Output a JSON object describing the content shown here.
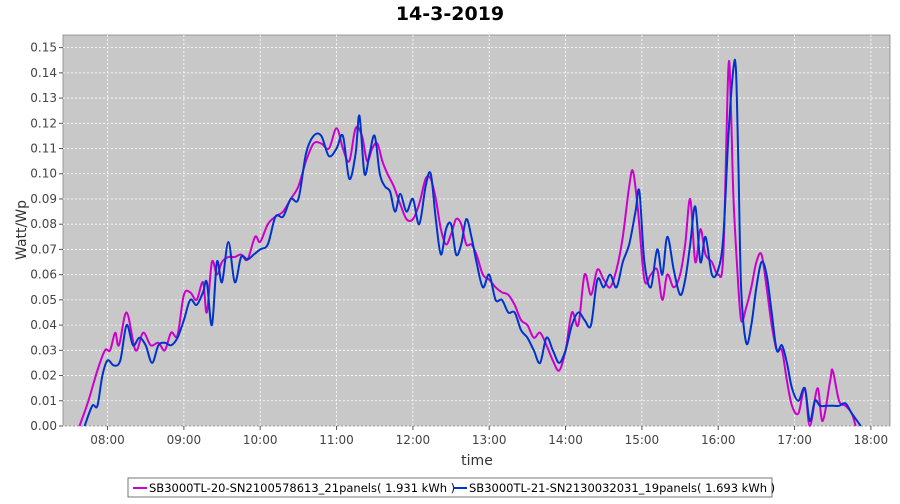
{
  "chart_data": {
    "type": "line",
    "title": "14-3-2019",
    "xlabel": "time",
    "ylabel": "Watt/Wp",
    "xlim": [
      "07:25",
      "18:15"
    ],
    "ylim": [
      0,
      0.155
    ],
    "grid": true,
    "legend_position": "bottom",
    "plot_background": "#c8c8c8",
    "x_ticks": [
      "08:00",
      "09:00",
      "10:00",
      "11:00",
      "12:00",
      "13:00",
      "14:00",
      "15:00",
      "16:00",
      "17:00",
      "18:00"
    ],
    "y_ticks": [
      0.0,
      0.01,
      0.02,
      0.03,
      0.04,
      0.05,
      0.06,
      0.07,
      0.08,
      0.09,
      0.1,
      0.11,
      0.12,
      0.13,
      0.14,
      0.15
    ],
    "series": [
      {
        "name": "SB3000TL-20-SN2100578613_21panels( 1.931 kWh )",
        "color": "#cc00cc",
        "points": [
          [
            "07:38",
            0.0
          ],
          [
            "07:45",
            0.01
          ],
          [
            "07:52",
            0.022
          ],
          [
            "07:58",
            0.03
          ],
          [
            "08:02",
            0.03
          ],
          [
            "08:06",
            0.037
          ],
          [
            "08:09",
            0.032
          ],
          [
            "08:15",
            0.045
          ],
          [
            "08:22",
            0.03
          ],
          [
            "08:28",
            0.037
          ],
          [
            "08:34",
            0.032
          ],
          [
            "08:40",
            0.033
          ],
          [
            "08:45",
            0.03
          ],
          [
            "08:50",
            0.037
          ],
          [
            "08:55",
            0.036
          ],
          [
            "09:00",
            0.052
          ],
          [
            "09:05",
            0.053
          ],
          [
            "09:10",
            0.05
          ],
          [
            "09:15",
            0.057
          ],
          [
            "09:18",
            0.045
          ],
          [
            "09:22",
            0.065
          ],
          [
            "09:26",
            0.06
          ],
          [
            "09:30",
            0.065
          ],
          [
            "09:35",
            0.067
          ],
          [
            "09:40",
            0.067
          ],
          [
            "09:45",
            0.068
          ],
          [
            "09:50",
            0.066
          ],
          [
            "09:56",
            0.075
          ],
          [
            "10:00",
            0.073
          ],
          [
            "10:06",
            0.08
          ],
          [
            "10:12",
            0.083
          ],
          [
            "10:18",
            0.085
          ],
          [
            "10:24",
            0.09
          ],
          [
            "10:30",
            0.095
          ],
          [
            "10:36",
            0.105
          ],
          [
            "10:42",
            0.112
          ],
          [
            "10:48",
            0.112
          ],
          [
            "10:54",
            0.11
          ],
          [
            "11:00",
            0.118
          ],
          [
            "11:05",
            0.11
          ],
          [
            "11:10",
            0.105
          ],
          [
            "11:15",
            0.118
          ],
          [
            "11:20",
            0.115
          ],
          [
            "11:24",
            0.105
          ],
          [
            "11:28",
            0.11
          ],
          [
            "11:32",
            0.112
          ],
          [
            "11:36",
            0.105
          ],
          [
            "11:40",
            0.1
          ],
          [
            "11:45",
            0.095
          ],
          [
            "11:50",
            0.088
          ],
          [
            "11:55",
            0.082
          ],
          [
            "12:00",
            0.082
          ],
          [
            "12:05",
            0.088
          ],
          [
            "12:10",
            0.098
          ],
          [
            "12:14",
            0.098
          ],
          [
            "12:18",
            0.09
          ],
          [
            "12:22",
            0.078
          ],
          [
            "12:26",
            0.072
          ],
          [
            "12:30",
            0.076
          ],
          [
            "12:34",
            0.082
          ],
          [
            "12:38",
            0.08
          ],
          [
            "12:42",
            0.072
          ],
          [
            "12:46",
            0.072
          ],
          [
            "12:50",
            0.068
          ],
          [
            "12:55",
            0.06
          ],
          [
            "13:00",
            0.058
          ],
          [
            "13:05",
            0.055
          ],
          [
            "13:10",
            0.053
          ],
          [
            "13:15",
            0.052
          ],
          [
            "13:20",
            0.048
          ],
          [
            "13:25",
            0.042
          ],
          [
            "13:30",
            0.04
          ],
          [
            "13:35",
            0.035
          ],
          [
            "13:40",
            0.037
          ],
          [
            "13:45",
            0.032
          ],
          [
            "13:50",
            0.026
          ],
          [
            "13:55",
            0.022
          ],
          [
            "14:00",
            0.03
          ],
          [
            "14:05",
            0.045
          ],
          [
            "14:10",
            0.04
          ],
          [
            "14:15",
            0.06
          ],
          [
            "14:20",
            0.052
          ],
          [
            "14:25",
            0.062
          ],
          [
            "14:30",
            0.058
          ],
          [
            "14:35",
            0.055
          ],
          [
            "14:40",
            0.062
          ],
          [
            "14:45",
            0.075
          ],
          [
            "14:50",
            0.095
          ],
          [
            "14:53",
            0.101
          ],
          [
            "14:57",
            0.085
          ],
          [
            "15:02",
            0.058
          ],
          [
            "15:07",
            0.06
          ],
          [
            "15:12",
            0.062
          ],
          [
            "15:16",
            0.05
          ],
          [
            "15:20",
            0.06
          ],
          [
            "15:25",
            0.055
          ],
          [
            "15:30",
            0.06
          ],
          [
            "15:34",
            0.072
          ],
          [
            "15:38",
            0.09
          ],
          [
            "15:42",
            0.065
          ],
          [
            "15:46",
            0.078
          ],
          [
            "15:50",
            0.068
          ],
          [
            "15:55",
            0.065
          ],
          [
            "16:00",
            0.06
          ],
          [
            "16:04",
            0.068
          ],
          [
            "16:08",
            0.142
          ],
          [
            "16:10",
            0.125
          ],
          [
            "16:12",
            0.09
          ],
          [
            "16:15",
            0.062
          ],
          [
            "16:18",
            0.042
          ],
          [
            "16:22",
            0.047
          ],
          [
            "16:26",
            0.055
          ],
          [
            "16:30",
            0.065
          ],
          [
            "16:34",
            0.068
          ],
          [
            "16:38",
            0.055
          ],
          [
            "16:42",
            0.04
          ],
          [
            "16:46",
            0.03
          ],
          [
            "16:50",
            0.03
          ],
          [
            "16:54",
            0.018
          ],
          [
            "16:58",
            0.008
          ],
          [
            "17:03",
            0.005
          ],
          [
            "17:08",
            0.015
          ],
          [
            "17:12",
            0.0
          ],
          [
            "17:18",
            0.015
          ],
          [
            "17:22",
            0.002
          ],
          [
            "17:28",
            0.018
          ],
          [
            "17:30",
            0.022
          ],
          [
            "17:35",
            0.01
          ],
          [
            "17:40",
            0.008
          ],
          [
            "17:45",
            0.005
          ],
          [
            "17:48",
            0.0
          ]
        ]
      },
      {
        "name": "SB3000TL-21-SN2130032031_19panels( 1.693 kWh )",
        "color": "#0033cc",
        "points": [
          [
            "07:42",
            0.0
          ],
          [
            "07:48",
            0.008
          ],
          [
            "07:52",
            0.008
          ],
          [
            "07:56",
            0.02
          ],
          [
            "08:00",
            0.026
          ],
          [
            "08:05",
            0.024
          ],
          [
            "08:10",
            0.026
          ],
          [
            "08:15",
            0.04
          ],
          [
            "08:20",
            0.032
          ],
          [
            "08:25",
            0.035
          ],
          [
            "08:30",
            0.032
          ],
          [
            "08:35",
            0.025
          ],
          [
            "08:40",
            0.032
          ],
          [
            "08:45",
            0.033
          ],
          [
            "08:50",
            0.032
          ],
          [
            "08:55",
            0.035
          ],
          [
            "09:00",
            0.042
          ],
          [
            "09:05",
            0.05
          ],
          [
            "09:10",
            0.048
          ],
          [
            "09:15",
            0.053
          ],
          [
            "09:18",
            0.057
          ],
          [
            "09:22",
            0.04
          ],
          [
            "09:26",
            0.065
          ],
          [
            "09:30",
            0.057
          ],
          [
            "09:35",
            0.073
          ],
          [
            "09:40",
            0.057
          ],
          [
            "09:45",
            0.067
          ],
          [
            "09:50",
            0.066
          ],
          [
            "09:55",
            0.068
          ],
          [
            "10:00",
            0.07
          ],
          [
            "10:06",
            0.072
          ],
          [
            "10:12",
            0.083
          ],
          [
            "10:18",
            0.083
          ],
          [
            "10:24",
            0.09
          ],
          [
            "10:30",
            0.09
          ],
          [
            "10:36",
            0.108
          ],
          [
            "10:42",
            0.115
          ],
          [
            "10:48",
            0.115
          ],
          [
            "10:54",
            0.107
          ],
          [
            "11:00",
            0.11
          ],
          [
            "11:05",
            0.115
          ],
          [
            "11:10",
            0.098
          ],
          [
            "11:15",
            0.108
          ],
          [
            "11:18",
            0.123
          ],
          [
            "11:22",
            0.1
          ],
          [
            "11:26",
            0.108
          ],
          [
            "11:30",
            0.115
          ],
          [
            "11:34",
            0.1
          ],
          [
            "11:38",
            0.095
          ],
          [
            "11:42",
            0.093
          ],
          [
            "11:46",
            0.085
          ],
          [
            "11:50",
            0.092
          ],
          [
            "11:55",
            0.085
          ],
          [
            "12:00",
            0.09
          ],
          [
            "12:05",
            0.08
          ],
          [
            "12:10",
            0.095
          ],
          [
            "12:14",
            0.1
          ],
          [
            "12:18",
            0.082
          ],
          [
            "12:22",
            0.068
          ],
          [
            "12:26",
            0.078
          ],
          [
            "12:30",
            0.08
          ],
          [
            "12:34",
            0.068
          ],
          [
            "12:38",
            0.072
          ],
          [
            "12:42",
            0.082
          ],
          [
            "12:46",
            0.075
          ],
          [
            "12:50",
            0.065
          ],
          [
            "12:55",
            0.055
          ],
          [
            "13:00",
            0.06
          ],
          [
            "13:05",
            0.05
          ],
          [
            "13:10",
            0.05
          ],
          [
            "13:15",
            0.045
          ],
          [
            "13:20",
            0.045
          ],
          [
            "13:25",
            0.038
          ],
          [
            "13:30",
            0.035
          ],
          [
            "13:35",
            0.03
          ],
          [
            "13:40",
            0.025
          ],
          [
            "13:45",
            0.035
          ],
          [
            "13:50",
            0.03
          ],
          [
            "13:55",
            0.025
          ],
          [
            "14:00",
            0.03
          ],
          [
            "14:05",
            0.04
          ],
          [
            "14:10",
            0.045
          ],
          [
            "14:15",
            0.042
          ],
          [
            "14:20",
            0.04
          ],
          [
            "14:25",
            0.058
          ],
          [
            "14:30",
            0.055
          ],
          [
            "14:35",
            0.06
          ],
          [
            "14:40",
            0.055
          ],
          [
            "14:45",
            0.065
          ],
          [
            "14:50",
            0.072
          ],
          [
            "14:55",
            0.085
          ],
          [
            "14:58",
            0.093
          ],
          [
            "15:02",
            0.065
          ],
          [
            "15:07",
            0.055
          ],
          [
            "15:12",
            0.07
          ],
          [
            "15:16",
            0.06
          ],
          [
            "15:20",
            0.075
          ],
          [
            "15:25",
            0.062
          ],
          [
            "15:30",
            0.052
          ],
          [
            "15:34",
            0.058
          ],
          [
            "15:38",
            0.072
          ],
          [
            "15:42",
            0.087
          ],
          [
            "15:46",
            0.065
          ],
          [
            "15:50",
            0.075
          ],
          [
            "15:55",
            0.06
          ],
          [
            "16:00",
            0.062
          ],
          [
            "16:04",
            0.075
          ],
          [
            "16:08",
            0.115
          ],
          [
            "16:12",
            0.142
          ],
          [
            "16:14",
            0.14
          ],
          [
            "16:16",
            0.1
          ],
          [
            "16:18",
            0.055
          ],
          [
            "16:22",
            0.033
          ],
          [
            "16:26",
            0.04
          ],
          [
            "16:30",
            0.055
          ],
          [
            "16:34",
            0.065
          ],
          [
            "16:38",
            0.06
          ],
          [
            "16:42",
            0.045
          ],
          [
            "16:46",
            0.03
          ],
          [
            "16:50",
            0.032
          ],
          [
            "16:54",
            0.025
          ],
          [
            "16:58",
            0.015
          ],
          [
            "17:03",
            0.01
          ],
          [
            "17:08",
            0.015
          ],
          [
            "17:12",
            0.002
          ],
          [
            "17:16",
            0.01
          ],
          [
            "17:20",
            0.008
          ],
          [
            "17:25",
            0.008
          ],
          [
            "17:30",
            0.008
          ],
          [
            "17:35",
            0.008
          ],
          [
            "17:40",
            0.009
          ],
          [
            "17:45",
            0.005
          ],
          [
            "17:52",
            0.0
          ]
        ]
      }
    ]
  }
}
